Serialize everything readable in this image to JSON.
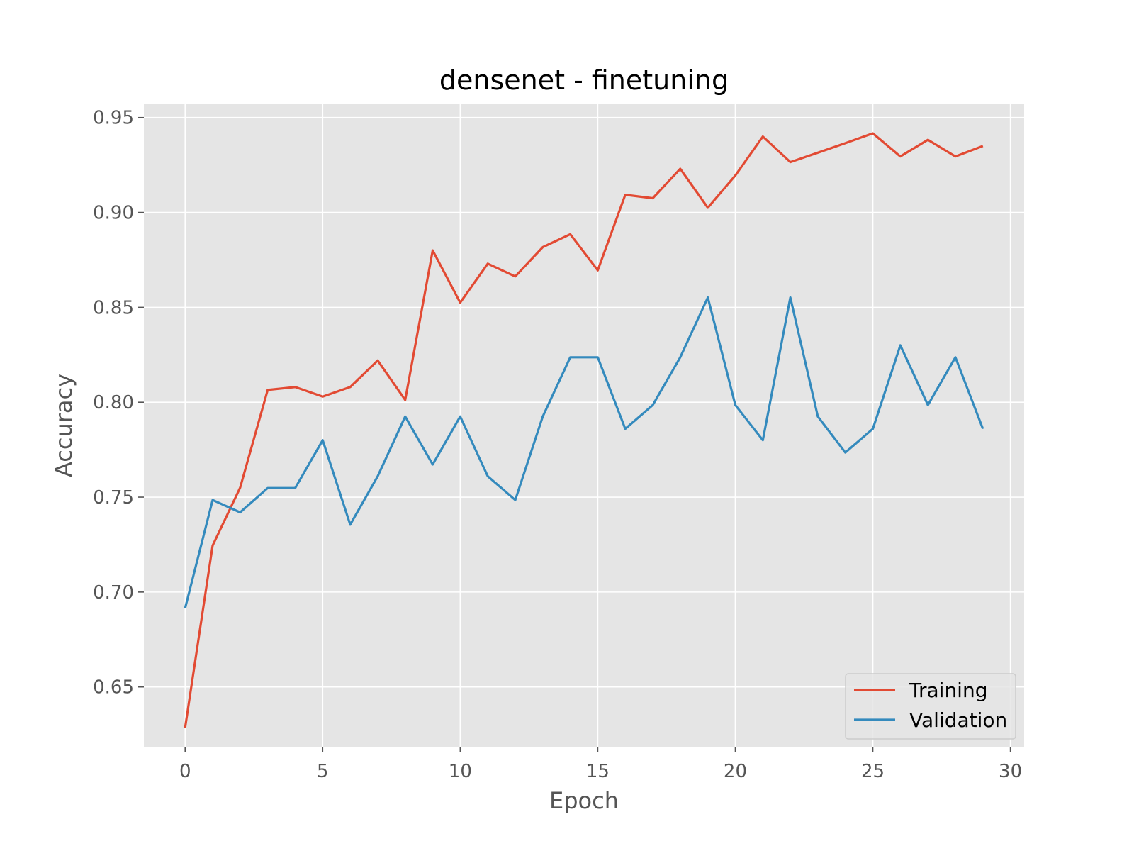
{
  "chart_data": {
    "type": "line",
    "title": "densenet - finetuning",
    "xlabel": "Epoch",
    "ylabel": "Accuracy",
    "xlim": [
      -1.5,
      30.5
    ],
    "ylim": [
      0.6185,
      0.957
    ],
    "xticks": [
      0,
      5,
      10,
      15,
      20,
      25,
      30
    ],
    "yticks": [
      0.65,
      0.7,
      0.75,
      0.8,
      0.85,
      0.9,
      0.95
    ],
    "xtick_labels": [
      "0",
      "5",
      "10",
      "15",
      "20",
      "25",
      "30"
    ],
    "ytick_labels": [
      "0.65",
      "0.70",
      "0.75",
      "0.80",
      "0.85",
      "0.90",
      "0.95"
    ],
    "grid": true,
    "legend_position": "lower-right",
    "x": [
      0,
      1,
      2,
      3,
      4,
      5,
      6,
      7,
      8,
      9,
      10,
      11,
      12,
      13,
      14,
      15,
      16,
      17,
      18,
      19,
      20,
      21,
      22,
      23,
      24,
      25,
      26,
      27,
      28,
      29
    ],
    "series": [
      {
        "name": "Training",
        "color": "#E24A33",
        "values": [
          0.6285,
          0.7245,
          0.755,
          0.8065,
          0.808,
          0.803,
          0.808,
          0.822,
          0.8012,
          0.88,
          0.8525,
          0.873,
          0.8663,
          0.8817,
          0.8885,
          0.8695,
          0.9093,
          0.9075,
          0.923,
          0.9025,
          0.9195,
          0.94,
          0.9265,
          0.9315,
          0.9365,
          0.9417,
          0.9295,
          0.9383,
          0.9295,
          0.935
        ]
      },
      {
        "name": "Validation",
        "color": "#348ABD",
        "values": [
          0.6915,
          0.7485,
          0.742,
          0.7548,
          0.7548,
          0.78,
          0.7355,
          0.761,
          0.7925,
          0.7672,
          0.7925,
          0.761,
          0.7485,
          0.7925,
          0.8237,
          0.8237,
          0.786,
          0.7985,
          0.8237,
          0.8552,
          0.7985,
          0.78,
          0.8552,
          0.7925,
          0.7735,
          0.786,
          0.83,
          0.7985,
          0.8237,
          0.786
        ]
      }
    ]
  }
}
